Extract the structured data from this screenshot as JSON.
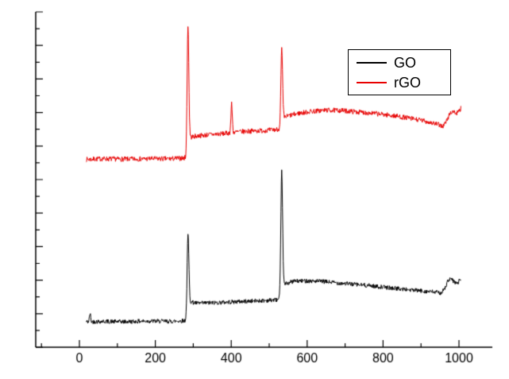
{
  "chart_data": {
    "type": "line",
    "title": "",
    "xlabel": "",
    "ylabel": "",
    "xlim": [
      -115,
      1090
    ],
    "ylim": [
      0,
      1
    ],
    "x_ticks": [
      0,
      200,
      400,
      600,
      800,
      1000
    ],
    "x_minor_step": 100,
    "y_major_step": 0.1,
    "y_minor_step": 0.05,
    "y_tick_labels_visible": false,
    "grid": false,
    "legend": {
      "position": "top-right",
      "entries": [
        {
          "label": "GO",
          "color": "#000000"
        },
        {
          "label": "rGO",
          "color": "#e80000"
        }
      ]
    },
    "series": [
      {
        "name": "GO",
        "color": "#000000",
        "x_range": [
          18,
          1005
        ],
        "noise": 0.0065,
        "seed": 42,
        "baseline": [
          [
            18,
            0.076
          ],
          [
            60,
            0.077
          ],
          [
            120,
            0.076
          ],
          [
            180,
            0.078
          ],
          [
            240,
            0.077
          ],
          [
            275,
            0.079
          ],
          [
            283,
            0.081
          ],
          [
            290,
            0.136
          ],
          [
            310,
            0.131
          ],
          [
            340,
            0.132
          ],
          [
            380,
            0.134
          ],
          [
            420,
            0.136
          ],
          [
            460,
            0.138
          ],
          [
            500,
            0.14
          ],
          [
            524,
            0.142
          ],
          [
            530,
            0.147
          ],
          [
            537,
            0.183
          ],
          [
            545,
            0.19
          ],
          [
            565,
            0.197
          ],
          [
            600,
            0.198
          ],
          [
            640,
            0.196
          ],
          [
            700,
            0.19
          ],
          [
            760,
            0.184
          ],
          [
            820,
            0.177
          ],
          [
            880,
            0.17
          ],
          [
            930,
            0.165
          ],
          [
            952,
            0.162
          ],
          [
            962,
            0.172
          ],
          [
            970,
            0.196
          ],
          [
            978,
            0.204
          ],
          [
            986,
            0.196
          ],
          [
            994,
            0.19
          ],
          [
            1000,
            0.196
          ],
          [
            1005,
            0.205
          ]
        ],
        "peaks": [
          {
            "x": 28,
            "top": 0.1,
            "sigma": 1.5
          },
          {
            "x": 286,
            "top": 0.335,
            "sigma": 2.3
          },
          {
            "x": 533,
            "top": 0.525,
            "sigma": 2.3
          }
        ]
      },
      {
        "name": "rGO",
        "color": "#e80000",
        "x_range": [
          18,
          1005
        ],
        "noise": 0.0075,
        "seed": 7,
        "baseline": [
          [
            18,
            0.56
          ],
          [
            60,
            0.562
          ],
          [
            120,
            0.561
          ],
          [
            180,
            0.562
          ],
          [
            240,
            0.562
          ],
          [
            275,
            0.564
          ],
          [
            283,
            0.567
          ],
          [
            291,
            0.626
          ],
          [
            310,
            0.63
          ],
          [
            340,
            0.634
          ],
          [
            370,
            0.636
          ],
          [
            396,
            0.639
          ],
          [
            405,
            0.641
          ],
          [
            440,
            0.644
          ],
          [
            480,
            0.646
          ],
          [
            510,
            0.648
          ],
          [
            524,
            0.65
          ],
          [
            530,
            0.655
          ],
          [
            538,
            0.684
          ],
          [
            550,
            0.69
          ],
          [
            575,
            0.697
          ],
          [
            610,
            0.703
          ],
          [
            650,
            0.707
          ],
          [
            690,
            0.706
          ],
          [
            730,
            0.702
          ],
          [
            780,
            0.697
          ],
          [
            830,
            0.69
          ],
          [
            880,
            0.681
          ],
          [
            920,
            0.672
          ],
          [
            945,
            0.664
          ],
          [
            958,
            0.659
          ],
          [
            968,
            0.676
          ],
          [
            977,
            0.699
          ],
          [
            985,
            0.704
          ],
          [
            993,
            0.697
          ],
          [
            1000,
            0.702
          ],
          [
            1005,
            0.713
          ]
        ],
        "peaks": [
          {
            "x": 286,
            "top": 0.962,
            "sigma": 2.2
          },
          {
            "x": 401,
            "top": 0.725,
            "sigma": 1.8
          },
          {
            "x": 533,
            "top": 0.89,
            "sigma": 2.2
          }
        ]
      }
    ]
  }
}
